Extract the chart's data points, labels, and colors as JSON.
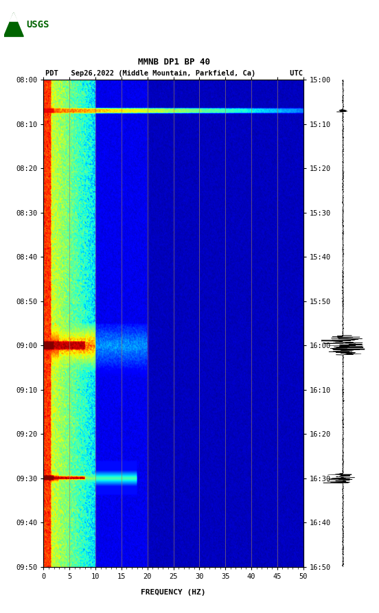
{
  "title_line1": "MMNB DP1 BP 40",
  "title_line2": "PDT   Sep26,2022 (Middle Mountain, Parkfield, Ca)        UTC",
  "xlabel": "FREQUENCY (HZ)",
  "freq_min": 0,
  "freq_max": 50,
  "freq_ticks": [
    0,
    5,
    10,
    15,
    20,
    25,
    30,
    35,
    40,
    45,
    50
  ],
  "time_left_labels": [
    "08:00",
    "08:10",
    "08:20",
    "08:30",
    "08:40",
    "08:50",
    "09:00",
    "09:10",
    "09:20",
    "09:30",
    "09:40",
    "09:50"
  ],
  "time_right_labels": [
    "15:00",
    "15:10",
    "15:20",
    "15:30",
    "15:40",
    "15:50",
    "16:00",
    "16:10",
    "16:20",
    "16:30",
    "16:40",
    "16:50"
  ],
  "n_time_steps": 600,
  "n_freq_steps": 500,
  "bg_color": "#ffffff",
  "vertical_line_freqs": [
    5,
    10,
    15,
    20,
    25,
    30,
    35,
    40,
    45
  ],
  "vertical_line_color": "#a08060",
  "usgs_logo_color": "#006400",
  "figsize": [
    5.52,
    8.93
  ],
  "dpi": 100
}
